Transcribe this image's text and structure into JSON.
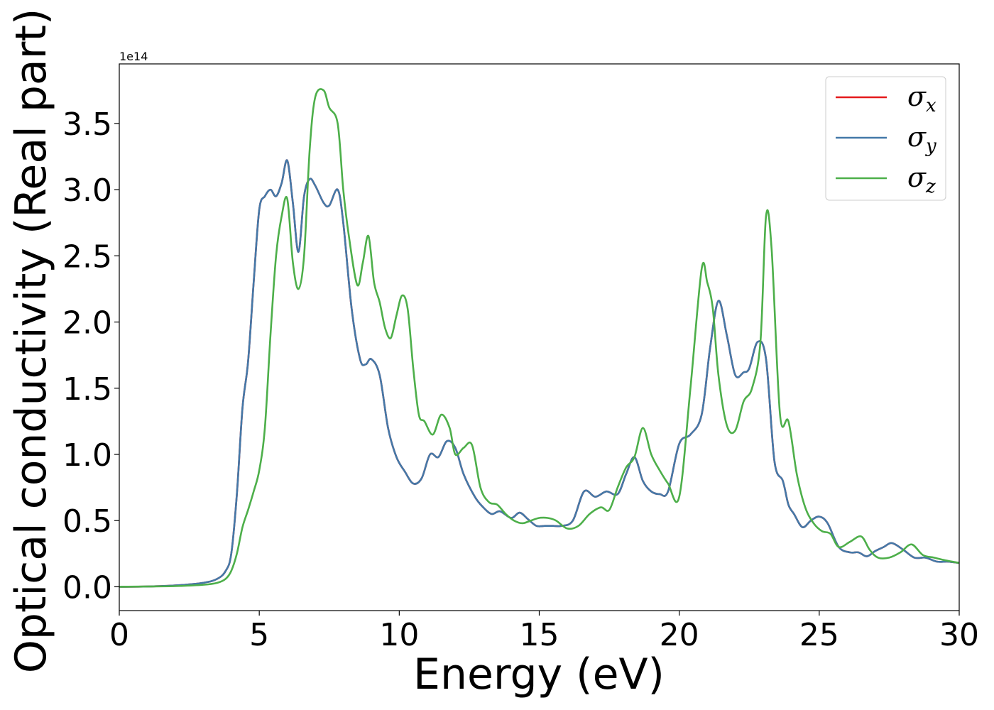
{
  "chart_data": {
    "type": "line",
    "title": "",
    "xlabel": "Energy (eV)",
    "ylabel": "Optical conductivity (Real part)",
    "y_offset_label": "1e14",
    "xlim": [
      0,
      30
    ],
    "ylim": [
      -0.18,
      3.95
    ],
    "xticks": [
      0,
      5,
      10,
      15,
      20,
      25,
      30
    ],
    "xtick_labels": [
      "0",
      "5",
      "10",
      "15",
      "20",
      "25",
      "30"
    ],
    "yticks": [
      0.0,
      0.5,
      1.0,
      1.5,
      2.0,
      2.5,
      3.0,
      3.5
    ],
    "ytick_labels": [
      "0.0",
      "0.5",
      "1.0",
      "1.5",
      "2.0",
      "2.5",
      "3.0",
      "3.5"
    ],
    "grid": false,
    "legend_position": "top-right",
    "series": [
      {
        "name": "σ_x",
        "legend_symbol": "σ",
        "legend_sub": "x",
        "color": "#e41a1c",
        "x": [
          0,
          1,
          2,
          3,
          3.5,
          3.8,
          4.0,
          4.2,
          4.4,
          4.6,
          4.8,
          5.0,
          5.2,
          5.4,
          5.6,
          5.8,
          6.0,
          6.2,
          6.4,
          6.6,
          6.8,
          7.0,
          7.3,
          7.5,
          7.8,
          8.0,
          8.3,
          8.6,
          8.8,
          9.0,
          9.3,
          9.6,
          9.9,
          10.2,
          10.5,
          10.8,
          11.1,
          11.4,
          11.7,
          12.0,
          12.3,
          12.7,
          13.0,
          13.3,
          13.6,
          14.0,
          14.3,
          14.6,
          14.9,
          15.2,
          15.5,
          15.8,
          16.2,
          16.6,
          17.0,
          17.4,
          17.8,
          18.1,
          18.4,
          18.7,
          19.0,
          19.3,
          19.6,
          20.0,
          20.4,
          20.8,
          21.1,
          21.4,
          21.7,
          22.0,
          22.3,
          22.5,
          22.8,
          23.1,
          23.4,
          23.7,
          23.9,
          24.1,
          24.4,
          24.7,
          25.0,
          25.3,
          25.7,
          26.1,
          26.4,
          26.7,
          27.0,
          27.3,
          27.6,
          28.0,
          28.4,
          28.8,
          29.2,
          29.6,
          30.0
        ],
        "y": [
          0,
          0.002,
          0.01,
          0.03,
          0.06,
          0.12,
          0.25,
          0.7,
          1.35,
          1.7,
          2.3,
          2.85,
          2.95,
          3.0,
          2.95,
          3.05,
          3.22,
          2.9,
          2.53,
          2.95,
          3.08,
          3.03,
          2.9,
          2.88,
          3.0,
          2.75,
          2.1,
          1.72,
          1.68,
          1.72,
          1.6,
          1.2,
          0.98,
          0.87,
          0.78,
          0.82,
          1.0,
          0.98,
          1.1,
          1.05,
          0.85,
          0.68,
          0.6,
          0.55,
          0.57,
          0.52,
          0.56,
          0.51,
          0.46,
          0.46,
          0.46,
          0.46,
          0.5,
          0.72,
          0.68,
          0.72,
          0.7,
          0.85,
          0.98,
          0.8,
          0.72,
          0.7,
          0.72,
          1.08,
          1.15,
          1.3,
          1.8,
          2.16,
          1.9,
          1.6,
          1.62,
          1.65,
          1.85,
          1.72,
          0.95,
          0.8,
          0.62,
          0.55,
          0.45,
          0.5,
          0.53,
          0.48,
          0.3,
          0.26,
          0.26,
          0.23,
          0.27,
          0.3,
          0.33,
          0.28,
          0.22,
          0.22,
          0.19,
          0.19,
          0.18
        ]
      },
      {
        "name": "σ_y",
        "legend_symbol": "σ",
        "legend_sub": "y",
        "color": "#4479a8",
        "x": [
          0,
          1,
          2,
          3,
          3.5,
          3.8,
          4.0,
          4.2,
          4.4,
          4.6,
          4.8,
          5.0,
          5.2,
          5.4,
          5.6,
          5.8,
          6.0,
          6.2,
          6.4,
          6.6,
          6.8,
          7.0,
          7.3,
          7.5,
          7.8,
          8.0,
          8.3,
          8.6,
          8.8,
          9.0,
          9.3,
          9.6,
          9.9,
          10.2,
          10.5,
          10.8,
          11.1,
          11.4,
          11.7,
          12.0,
          12.3,
          12.7,
          13.0,
          13.3,
          13.6,
          14.0,
          14.3,
          14.6,
          14.9,
          15.2,
          15.5,
          15.8,
          16.2,
          16.6,
          17.0,
          17.4,
          17.8,
          18.1,
          18.4,
          18.7,
          19.0,
          19.3,
          19.6,
          20.0,
          20.4,
          20.8,
          21.1,
          21.4,
          21.7,
          22.0,
          22.3,
          22.5,
          22.8,
          23.1,
          23.4,
          23.7,
          23.9,
          24.1,
          24.4,
          24.7,
          25.0,
          25.3,
          25.7,
          26.1,
          26.4,
          26.7,
          27.0,
          27.3,
          27.6,
          28.0,
          28.4,
          28.8,
          29.2,
          29.6,
          30.0
        ],
        "y": [
          0,
          0.002,
          0.01,
          0.03,
          0.06,
          0.12,
          0.25,
          0.7,
          1.35,
          1.7,
          2.3,
          2.85,
          2.95,
          3.0,
          2.95,
          3.05,
          3.22,
          2.9,
          2.53,
          2.95,
          3.08,
          3.03,
          2.9,
          2.88,
          3.0,
          2.75,
          2.1,
          1.72,
          1.68,
          1.72,
          1.6,
          1.2,
          0.98,
          0.87,
          0.78,
          0.82,
          1.0,
          0.98,
          1.1,
          1.05,
          0.85,
          0.68,
          0.6,
          0.55,
          0.57,
          0.52,
          0.56,
          0.51,
          0.46,
          0.46,
          0.46,
          0.46,
          0.5,
          0.72,
          0.68,
          0.72,
          0.7,
          0.85,
          0.98,
          0.8,
          0.72,
          0.7,
          0.72,
          1.08,
          1.15,
          1.3,
          1.8,
          2.16,
          1.9,
          1.6,
          1.62,
          1.65,
          1.85,
          1.72,
          0.95,
          0.8,
          0.62,
          0.55,
          0.45,
          0.5,
          0.53,
          0.48,
          0.3,
          0.26,
          0.26,
          0.23,
          0.27,
          0.3,
          0.33,
          0.28,
          0.22,
          0.22,
          0.19,
          0.19,
          0.18
        ]
      },
      {
        "name": "σ_z",
        "legend_symbol": "σ",
        "legend_sub": "z",
        "color": "#4daf4a",
        "x": [
          0,
          1,
          2,
          3,
          3.5,
          3.8,
          4.0,
          4.2,
          4.4,
          4.6,
          4.8,
          5.0,
          5.2,
          5.4,
          5.6,
          5.8,
          6.0,
          6.2,
          6.4,
          6.6,
          6.8,
          7.0,
          7.3,
          7.5,
          7.8,
          8.0,
          8.2,
          8.5,
          8.7,
          8.9,
          9.1,
          9.3,
          9.5,
          9.7,
          9.9,
          10.1,
          10.3,
          10.5,
          10.7,
          10.9,
          11.2,
          11.5,
          11.8,
          12.0,
          12.3,
          12.6,
          12.9,
          13.2,
          13.5,
          13.8,
          14.1,
          14.4,
          14.7,
          15.0,
          15.3,
          15.6,
          16.0,
          16.4,
          16.8,
          17.2,
          17.5,
          17.8,
          18.1,
          18.4,
          18.7,
          19.0,
          19.3,
          19.6,
          20.0,
          20.4,
          20.8,
          21.0,
          21.2,
          21.4,
          21.7,
          22.0,
          22.3,
          22.6,
          22.9,
          23.1,
          23.3,
          23.6,
          23.9,
          24.2,
          24.5,
          24.8,
          25.1,
          25.4,
          25.7,
          26.1,
          26.5,
          26.8,
          27.1,
          27.5,
          27.9,
          28.3,
          28.7,
          29.1,
          29.5,
          30.0
        ],
        "y": [
          0,
          0.002,
          0.005,
          0.015,
          0.03,
          0.06,
          0.12,
          0.25,
          0.45,
          0.58,
          0.72,
          0.88,
          1.2,
          1.9,
          2.5,
          2.8,
          2.93,
          2.45,
          2.25,
          2.5,
          3.3,
          3.7,
          3.75,
          3.62,
          3.5,
          3.0,
          2.65,
          2.28,
          2.45,
          2.65,
          2.3,
          2.15,
          1.95,
          1.88,
          2.05,
          2.2,
          2.1,
          1.65,
          1.3,
          1.25,
          1.15,
          1.3,
          1.2,
          1.0,
          1.05,
          1.07,
          0.75,
          0.64,
          0.62,
          0.55,
          0.5,
          0.48,
          0.5,
          0.52,
          0.52,
          0.5,
          0.44,
          0.46,
          0.55,
          0.6,
          0.58,
          0.75,
          0.9,
          0.98,
          1.2,
          1.0,
          0.88,
          0.78,
          0.68,
          1.5,
          2.4,
          2.3,
          2.1,
          1.6,
          1.22,
          1.18,
          1.4,
          1.5,
          1.85,
          2.8,
          2.55,
          1.3,
          1.25,
          0.85,
          0.6,
          0.48,
          0.42,
          0.4,
          0.3,
          0.34,
          0.38,
          0.28,
          0.22,
          0.22,
          0.26,
          0.32,
          0.24,
          0.22,
          0.2,
          0.18
        ]
      }
    ]
  }
}
